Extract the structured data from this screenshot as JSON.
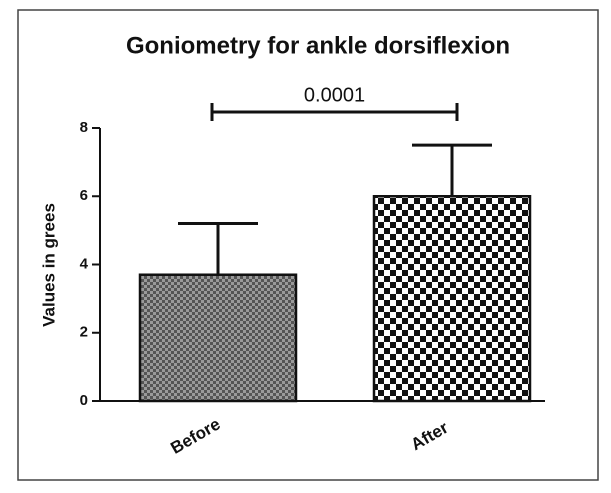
{
  "chart_data": {
    "type": "bar",
    "title": "Goniometry for ankle dorsiflexion",
    "ylabel": "Values in grees",
    "categories": [
      "Before",
      "After"
    ],
    "values": [
      3.7,
      6.0
    ],
    "errors": [
      1.5,
      1.5
    ],
    "ylim": [
      0,
      8
    ],
    "yticks": [
      0,
      2,
      4,
      6,
      8
    ],
    "annotation": "0.0001"
  }
}
